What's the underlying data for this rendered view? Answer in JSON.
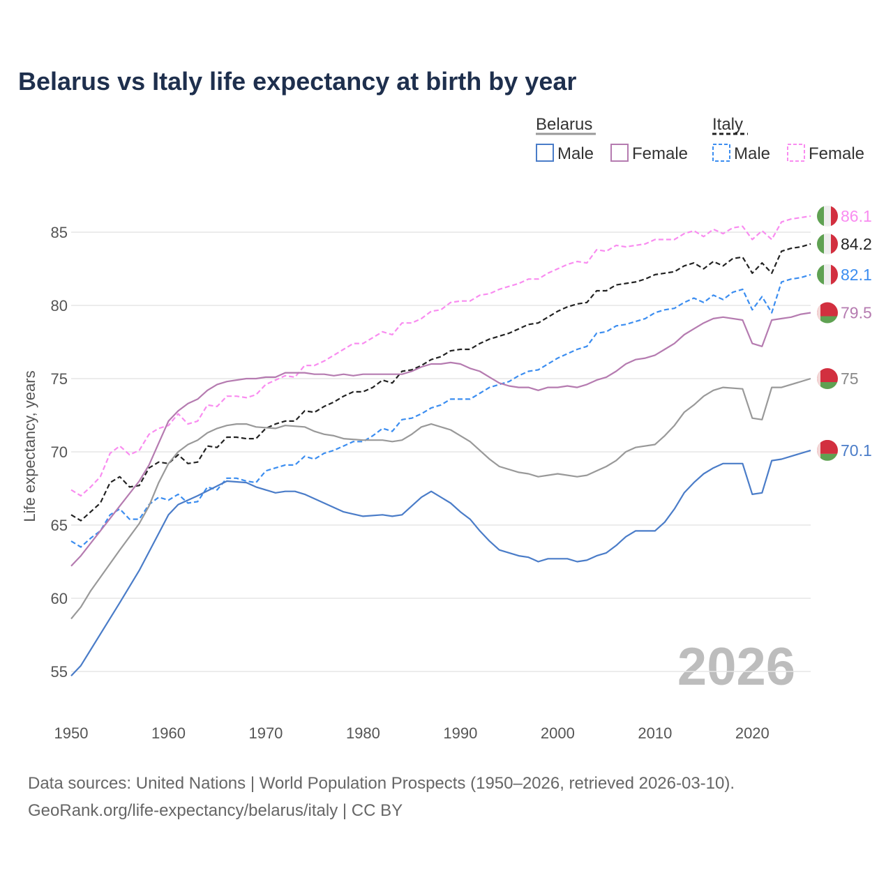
{
  "chart_data": {
    "type": "line",
    "title": "Belarus vs Italy life expectancy at birth by year",
    "xlabel": "",
    "ylabel": "Life expectancy, years",
    "xlim": [
      1950,
      2026
    ],
    "ylim": [
      53,
      87
    ],
    "xticks": [
      1950,
      1960,
      1970,
      1980,
      1990,
      2000,
      2010,
      2020
    ],
    "yticks": [
      55,
      60,
      65,
      70,
      75,
      80,
      85
    ],
    "grid": true,
    "current_year": "2026",
    "legend": {
      "placement": "top-right",
      "groups": [
        {
          "title": "Belarus",
          "male": "Male",
          "female": "Female"
        },
        {
          "title": "Italy",
          "male": "Male",
          "female": "Female"
        }
      ]
    },
    "series": [
      {
        "name": "Italy Female",
        "country": "Italy",
        "color": "#f98cf0",
        "dashed": true,
        "end_label": "86.1",
        "x": [
          1950,
          1951,
          1952,
          1953,
          1954,
          1955,
          1956,
          1957,
          1958,
          1959,
          1960,
          1961,
          1962,
          1963,
          1964,
          1965,
          1966,
          1967,
          1968,
          1969,
          1970,
          1971,
          1972,
          1973,
          1974,
          1975,
          1976,
          1977,
          1978,
          1979,
          1980,
          1981,
          1982,
          1983,
          1984,
          1985,
          1986,
          1987,
          1988,
          1989,
          1990,
          1991,
          1992,
          1993,
          1994,
          1995,
          1996,
          1997,
          1998,
          1999,
          2000,
          2001,
          2002,
          2003,
          2004,
          2005,
          2006,
          2007,
          2008,
          2009,
          2010,
          2011,
          2012,
          2013,
          2014,
          2015,
          2016,
          2017,
          2018,
          2019,
          2020,
          2021,
          2022,
          2023,
          2024,
          2025,
          2026
        ],
        "y": [
          67.4,
          67.0,
          67.6,
          68.3,
          69.9,
          70.4,
          69.8,
          70.1,
          71.2,
          71.6,
          71.8,
          72.6,
          71.9,
          72.1,
          73.2,
          73.1,
          73.8,
          73.8,
          73.7,
          73.9,
          74.6,
          74.9,
          75.2,
          75.1,
          75.9,
          75.9,
          76.2,
          76.6,
          77.0,
          77.4,
          77.4,
          77.8,
          78.2,
          78.0,
          78.8,
          78.8,
          79.1,
          79.6,
          79.7,
          80.2,
          80.3,
          80.3,
          80.7,
          80.8,
          81.1,
          81.3,
          81.5,
          81.8,
          81.8,
          82.2,
          82.5,
          82.8,
          83.0,
          82.9,
          83.8,
          83.7,
          84.1,
          84.0,
          84.1,
          84.2,
          84.5,
          84.5,
          84.5,
          84.9,
          85.1,
          84.7,
          85.2,
          84.9,
          85.3,
          85.4,
          84.5,
          85.1,
          84.5,
          85.7,
          85.9,
          86.0,
          86.1
        ]
      },
      {
        "name": "Italy Total",
        "country": "Italy",
        "color": "#222222",
        "dashed": true,
        "end_label": "84.2",
        "x": [
          1950,
          1951,
          1952,
          1953,
          1954,
          1955,
          1956,
          1957,
          1958,
          1959,
          1960,
          1961,
          1962,
          1963,
          1964,
          1965,
          1966,
          1967,
          1968,
          1969,
          1970,
          1971,
          1972,
          1973,
          1974,
          1975,
          1976,
          1977,
          1978,
          1979,
          1980,
          1981,
          1982,
          1983,
          1984,
          1985,
          1986,
          1987,
          1988,
          1989,
          1990,
          1991,
          1992,
          1993,
          1994,
          1995,
          1996,
          1997,
          1998,
          1999,
          2000,
          2001,
          2002,
          2003,
          2004,
          2005,
          2006,
          2007,
          2008,
          2009,
          2010,
          2011,
          2012,
          2013,
          2014,
          2015,
          2016,
          2017,
          2018,
          2019,
          2020,
          2021,
          2022,
          2023,
          2024,
          2025,
          2026
        ],
        "y": [
          65.7,
          65.3,
          65.9,
          66.5,
          67.9,
          68.3,
          67.6,
          67.7,
          68.9,
          69.3,
          69.2,
          69.8,
          69.2,
          69.3,
          70.4,
          70.3,
          71.0,
          71.0,
          70.9,
          70.9,
          71.6,
          71.9,
          72.1,
          72.1,
          72.8,
          72.7,
          73.1,
          73.4,
          73.8,
          74.1,
          74.1,
          74.4,
          74.9,
          74.7,
          75.5,
          75.6,
          75.9,
          76.3,
          76.5,
          76.9,
          77.0,
          77.0,
          77.4,
          77.7,
          77.9,
          78.1,
          78.4,
          78.7,
          78.8,
          79.2,
          79.6,
          79.9,
          80.1,
          80.2,
          81.0,
          81.0,
          81.4,
          81.5,
          81.6,
          81.8,
          82.1,
          82.2,
          82.3,
          82.7,
          82.9,
          82.5,
          83.0,
          82.7,
          83.2,
          83.3,
          82.2,
          82.9,
          82.2,
          83.7,
          83.9,
          84.0,
          84.2
        ]
      },
      {
        "name": "Italy Male",
        "country": "Italy",
        "color": "#3b8df0",
        "dashed": true,
        "end_label": "82.1",
        "x": [
          1950,
          1951,
          1952,
          1953,
          1954,
          1955,
          1956,
          1957,
          1958,
          1959,
          1960,
          1961,
          1962,
          1963,
          1964,
          1965,
          1966,
          1967,
          1968,
          1969,
          1970,
          1971,
          1972,
          1973,
          1974,
          1975,
          1976,
          1977,
          1978,
          1979,
          1980,
          1981,
          1982,
          1983,
          1984,
          1985,
          1986,
          1987,
          1988,
          1989,
          1990,
          1991,
          1992,
          1993,
          1994,
          1995,
          1996,
          1997,
          1998,
          1999,
          2000,
          2001,
          2002,
          2003,
          2004,
          2005,
          2006,
          2007,
          2008,
          2009,
          2010,
          2011,
          2012,
          2013,
          2014,
          2015,
          2016,
          2017,
          2018,
          2019,
          2020,
          2021,
          2022,
          2023,
          2024,
          2025,
          2026
        ],
        "y": [
          63.9,
          63.5,
          64.1,
          64.6,
          65.7,
          66.1,
          65.4,
          65.4,
          66.4,
          66.9,
          66.7,
          67.1,
          66.5,
          66.6,
          67.6,
          67.4,
          68.2,
          68.2,
          68.0,
          67.9,
          68.7,
          68.9,
          69.1,
          69.1,
          69.7,
          69.5,
          69.9,
          70.1,
          70.4,
          70.7,
          70.7,
          71.1,
          71.6,
          71.4,
          72.2,
          72.3,
          72.6,
          73.0,
          73.2,
          73.6,
          73.6,
          73.6,
          74.0,
          74.4,
          74.6,
          74.8,
          75.2,
          75.5,
          75.6,
          76.0,
          76.4,
          76.7,
          77.0,
          77.2,
          78.1,
          78.2,
          78.6,
          78.7,
          78.9,
          79.1,
          79.5,
          79.7,
          79.8,
          80.2,
          80.5,
          80.2,
          80.7,
          80.4,
          80.9,
          81.1,
          79.7,
          80.6,
          79.5,
          81.6,
          81.8,
          81.9,
          82.1
        ]
      },
      {
        "name": "Belarus Female",
        "country": "Belarus",
        "color": "#b57bb0",
        "dashed": false,
        "end_label": "79.5",
        "x": [
          1950,
          1951,
          1953,
          1955,
          1957,
          1958,
          1959,
          1960,
          1961,
          1962,
          1963,
          1964,
          1965,
          1966,
          1968,
          1969,
          1970,
          1971,
          1972,
          1974,
          1975,
          1976,
          1977,
          1978,
          1979,
          1980,
          1984,
          1985,
          1986,
          1987,
          1988,
          1989,
          1990,
          1991,
          1992,
          1993,
          1994,
          1995,
          1996,
          1997,
          1998,
          1999,
          2000,
          2001,
          2002,
          2003,
          2004,
          2005,
          2006,
          2007,
          2008,
          2009,
          2010,
          2011,
          2012,
          2013,
          2014,
          2015,
          2016,
          2017,
          2019,
          2020,
          2021,
          2022,
          2023,
          2024,
          2025,
          2026
        ],
        "y": [
          62.2,
          62.9,
          64.6,
          66.3,
          68.0,
          69.1,
          70.6,
          72.1,
          72.8,
          73.3,
          73.6,
          74.2,
          74.6,
          74.8,
          75.0,
          75.0,
          75.1,
          75.1,
          75.4,
          75.4,
          75.3,
          75.3,
          75.2,
          75.3,
          75.2,
          75.3,
          75.3,
          75.5,
          75.8,
          76.0,
          76.0,
          76.1,
          76.0,
          75.7,
          75.5,
          75.1,
          74.7,
          74.5,
          74.4,
          74.4,
          74.2,
          74.4,
          74.4,
          74.5,
          74.4,
          74.6,
          74.9,
          75.1,
          75.5,
          76.0,
          76.3,
          76.4,
          76.6,
          77.0,
          77.4,
          78.0,
          78.4,
          78.8,
          79.1,
          79.2,
          79.0,
          77.4,
          77.2,
          79.0,
          79.1,
          79.2,
          79.4,
          79.5
        ]
      },
      {
        "name": "Belarus Total",
        "country": "Belarus",
        "color": "#999999",
        "dashed": false,
        "end_label": "75",
        "x": [
          1950,
          1951,
          1952,
          1955,
          1957,
          1958,
          1959,
          1960,
          1961,
          1962,
          1963,
          1964,
          1965,
          1966,
          1967,
          1968,
          1969,
          1971,
          1972,
          1974,
          1975,
          1976,
          1977,
          1978,
          1980,
          1981,
          1982,
          1983,
          1984,
          1985,
          1986,
          1987,
          1989,
          1990,
          1991,
          1992,
          1993,
          1994,
          1996,
          1997,
          1998,
          1999,
          2000,
          2002,
          2003,
          2004,
          2005,
          2006,
          2007,
          2008,
          2010,
          2011,
          2012,
          2013,
          2014,
          2015,
          2016,
          2017,
          2019,
          2020,
          2021,
          2022,
          2023,
          2026
        ],
        "y": [
          58.6,
          59.4,
          60.5,
          63.3,
          65.1,
          66.3,
          67.9,
          69.2,
          70.0,
          70.5,
          70.8,
          71.3,
          71.6,
          71.8,
          71.9,
          71.9,
          71.7,
          71.6,
          71.8,
          71.7,
          71.4,
          71.2,
          71.1,
          70.9,
          70.8,
          70.8,
          70.8,
          70.7,
          70.8,
          71.2,
          71.7,
          71.9,
          71.5,
          71.1,
          70.7,
          70.1,
          69.5,
          69.0,
          68.6,
          68.5,
          68.3,
          68.4,
          68.5,
          68.3,
          68.4,
          68.7,
          69.0,
          69.4,
          70.0,
          70.3,
          70.5,
          71.1,
          71.8,
          72.7,
          73.2,
          73.8,
          74.2,
          74.4,
          74.3,
          72.3,
          72.2,
          74.4,
          74.4,
          75.0
        ]
      },
      {
        "name": "Belarus Male",
        "country": "Belarus",
        "color": "#4a7cc8",
        "dashed": false,
        "end_label": "70.1",
        "x": [
          1950,
          1951,
          1955,
          1957,
          1960,
          1961,
          1963,
          1966,
          1968,
          1969,
          1971,
          1972,
          1973,
          1974,
          1978,
          1980,
          1982,
          1983,
          1984,
          1986,
          1987,
          1989,
          1990,
          1991,
          1992,
          1993,
          1994,
          1996,
          1997,
          1998,
          1999,
          2001,
          2002,
          2003,
          2004,
          2005,
          2006,
          2007,
          2008,
          2010,
          2011,
          2012,
          2013,
          2014,
          2015,
          2016,
          2017,
          2019,
          2020,
          2021,
          2022,
          2023,
          2026
        ],
        "y": [
          54.7,
          55.4,
          59.7,
          61.9,
          65.7,
          66.4,
          67.0,
          68.0,
          67.9,
          67.6,
          67.2,
          67.3,
          67.3,
          67.1,
          65.9,
          65.6,
          65.7,
          65.6,
          65.7,
          66.9,
          67.3,
          66.5,
          65.9,
          65.4,
          64.6,
          63.9,
          63.3,
          62.9,
          62.8,
          62.5,
          62.7,
          62.7,
          62.5,
          62.6,
          62.9,
          63.1,
          63.6,
          64.2,
          64.6,
          64.6,
          65.2,
          66.1,
          67.2,
          67.9,
          68.5,
          68.9,
          69.2,
          69.2,
          67.1,
          67.2,
          69.4,
          69.5,
          70.1
        ]
      }
    ]
  },
  "footer": {
    "line1": "Data sources: United Nations | World Population Prospects (1950–2026, retrieved 2026-03-10).",
    "line2": "GeoRank.org/life-expectancy/belarus/italy | CC BY"
  }
}
